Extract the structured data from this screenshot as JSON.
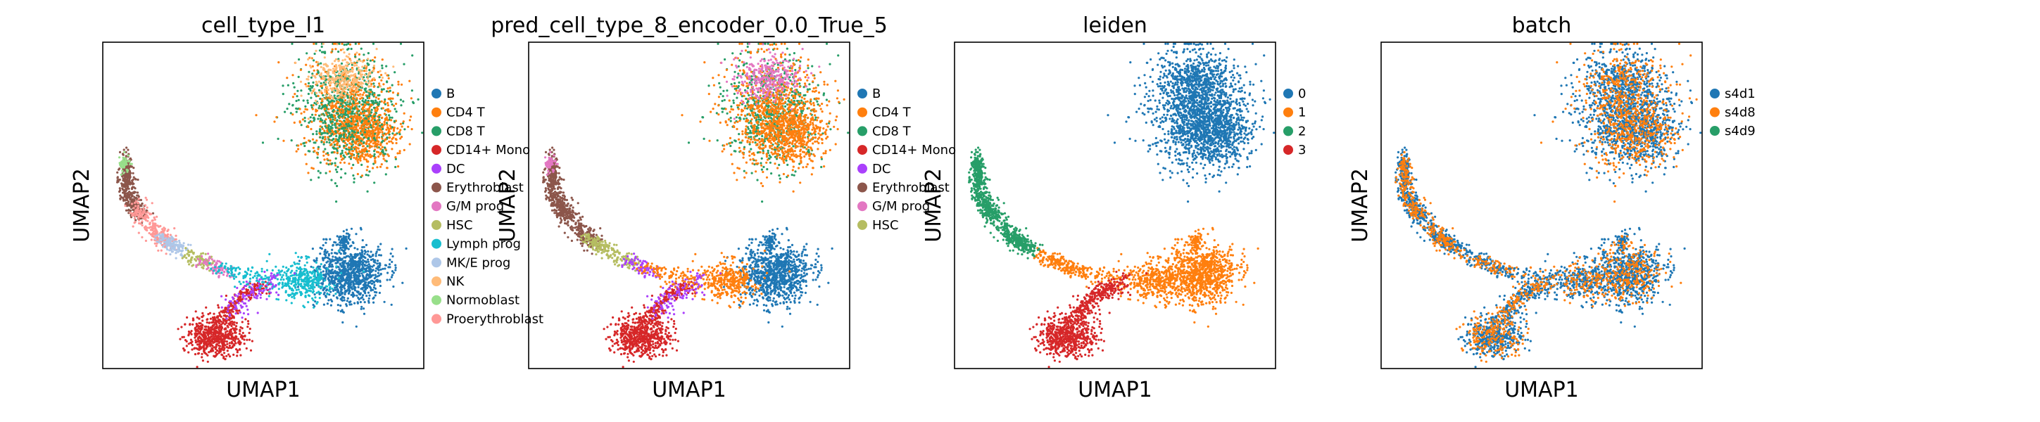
{
  "chart_data": [
    {
      "type": "scatter",
      "title": "cell_type_l1",
      "xlabel": "UMAP1",
      "ylabel": "UMAP2",
      "legend_position": "right",
      "grid": false,
      "series": [
        {
          "name": "B",
          "color": "#1f77b4"
        },
        {
          "name": "CD4 T",
          "color": "#ff7f0e"
        },
        {
          "name": "CD8 T",
          "color": "#279e68"
        },
        {
          "name": "CD14+ Mono",
          "color": "#d62728"
        },
        {
          "name": "DC",
          "color": "#aa40fc"
        },
        {
          "name": "Erythroblast",
          "color": "#8c564b"
        },
        {
          "name": "G/M prog",
          "color": "#e377c2"
        },
        {
          "name": "HSC",
          "color": "#b5bd61"
        },
        {
          "name": "Lymph prog",
          "color": "#17becf"
        },
        {
          "name": "MK/E prog",
          "color": "#aec7e8"
        },
        {
          "name": "NK",
          "color": "#ffbb78"
        },
        {
          "name": "Normoblast",
          "color": "#98df8a"
        },
        {
          "name": "Proerythroblast",
          "color": "#ff9896"
        }
      ]
    },
    {
      "type": "scatter",
      "title": "pred_cell_type_8_encoder_0.0_True_5",
      "xlabel": "UMAP1",
      "ylabel": "UMAP2",
      "legend_position": "right",
      "grid": false,
      "series": [
        {
          "name": "B",
          "color": "#1f77b4"
        },
        {
          "name": "CD4 T",
          "color": "#ff7f0e"
        },
        {
          "name": "CD8 T",
          "color": "#279e68"
        },
        {
          "name": "CD14+ Mono",
          "color": "#d62728"
        },
        {
          "name": "DC",
          "color": "#aa40fc"
        },
        {
          "name": "Erythroblast",
          "color": "#8c564b"
        },
        {
          "name": "G/M prog",
          "color": "#e377c2"
        },
        {
          "name": "HSC",
          "color": "#b5bd61"
        }
      ]
    },
    {
      "type": "scatter",
      "title": "leiden",
      "xlabel": "UMAP1",
      "ylabel": "UMAP2",
      "legend_position": "right",
      "grid": false,
      "series": [
        {
          "name": "0",
          "color": "#1f77b4"
        },
        {
          "name": "1",
          "color": "#ff7f0e"
        },
        {
          "name": "2",
          "color": "#279e68"
        },
        {
          "name": "3",
          "color": "#d62728"
        }
      ]
    },
    {
      "type": "scatter",
      "title": "batch",
      "xlabel": "UMAP1",
      "ylabel": "UMAP2",
      "legend_position": "right",
      "grid": false,
      "series": [
        {
          "name": "s4d1",
          "color": "#1f77b4"
        },
        {
          "name": "s4d8",
          "color": "#ff7f0e"
        },
        {
          "name": "s4d9",
          "color": "#279e68"
        }
      ]
    }
  ]
}
